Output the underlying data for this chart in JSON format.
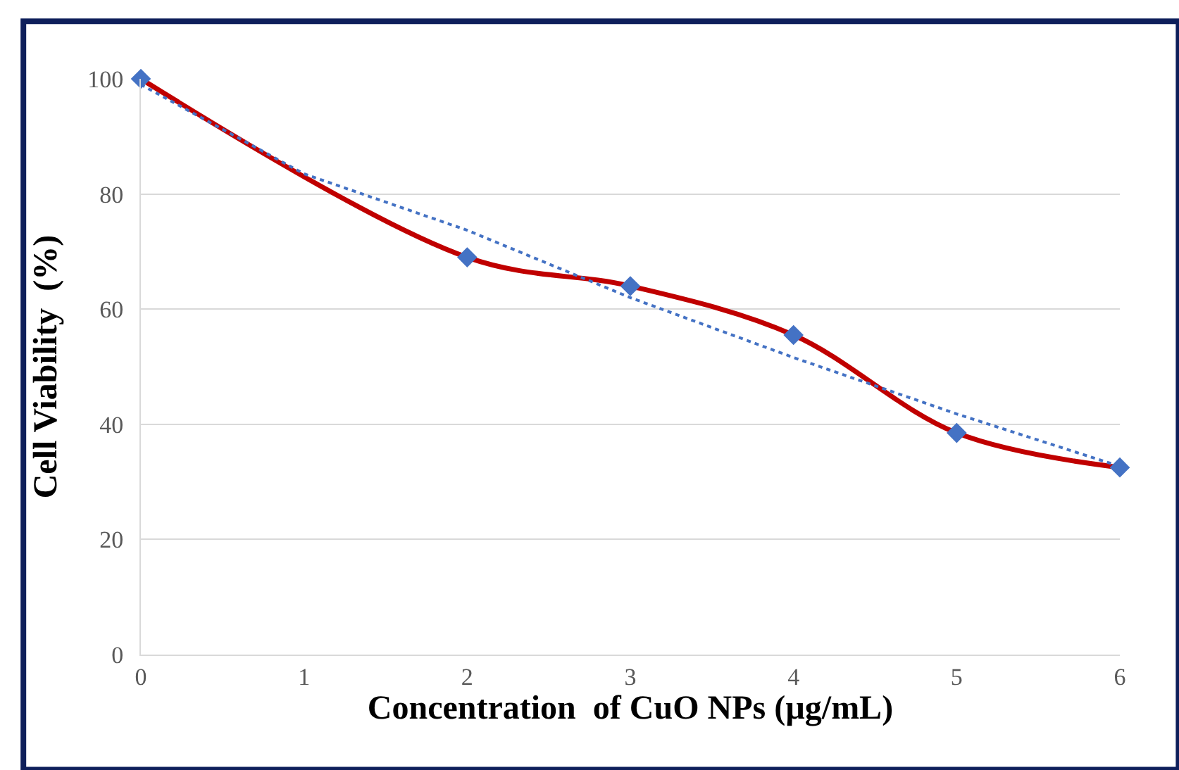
{
  "chart_data": {
    "type": "line",
    "xlabel": "Concentration  of CuO NPs (µg/mL)",
    "ylabel": "Cell Viability  (%)",
    "xlim": [
      0,
      6
    ],
    "xticks": [
      0,
      1,
      2,
      3,
      4,
      5,
      6
    ],
    "ylim": [
      0,
      100
    ],
    "yticks": [
      0,
      20,
      40,
      60,
      80,
      100
    ],
    "grid": "y",
    "series": [
      {
        "color": "#c00000",
        "x": [
          0,
          2,
          3,
          4,
          5,
          6
        ],
        "values": [
          100,
          69,
          64,
          55.5,
          38.5,
          32.5
        ],
        "marker": "diamond",
        "line_style": "solid"
      },
      {
        "type": "line",
        "color": "#4472c4",
        "x": [
          0,
          1,
          2,
          3,
          4,
          5,
          6
        ],
        "values": [
          99,
          83.5,
          73.7,
          62,
          51.6,
          41.8,
          32.7
        ],
        "marker": "none",
        "line_style": "dotted"
      }
    ]
  }
}
